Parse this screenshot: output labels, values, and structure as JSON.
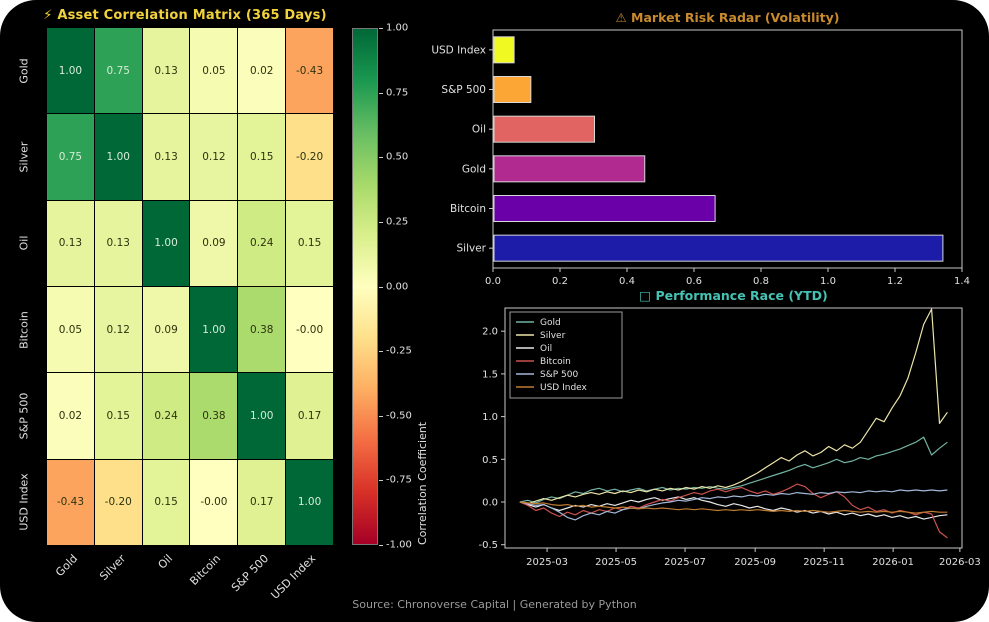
{
  "footer": {
    "text": "Source: Chronoverse Capital | Generated by Python"
  },
  "chart_data": [
    {
      "type": "heatmap",
      "title": "Asset Correlation Matrix (365 Days)",
      "title_icon": "⚡",
      "labels": [
        "Gold",
        "Silver",
        "Oil",
        "Bitcoin",
        "S&P 500",
        "USD Index"
      ],
      "matrix": [
        [
          1.0,
          0.75,
          0.13,
          0.05,
          0.02,
          -0.43
        ],
        [
          0.75,
          1.0,
          0.13,
          0.12,
          0.15,
          -0.2
        ],
        [
          0.13,
          0.13,
          1.0,
          0.09,
          0.24,
          0.15
        ],
        [
          0.05,
          0.12,
          0.09,
          1.0,
          0.38,
          -0.0
        ],
        [
          0.02,
          0.15,
          0.24,
          0.38,
          1.0,
          0.17
        ],
        [
          -0.43,
          -0.2,
          0.15,
          -0.0,
          0.17,
          1.0
        ]
      ],
      "cell_text": [
        [
          "1.00",
          "0.75",
          "0.13",
          "0.05",
          "0.02",
          "-0.43"
        ],
        [
          "0.75",
          "1.00",
          "0.13",
          "0.12",
          "0.15",
          "-0.20"
        ],
        [
          "0.13",
          "0.13",
          "1.00",
          "0.09",
          "0.24",
          "0.15"
        ],
        [
          "0.05",
          "0.12",
          "0.09",
          "1.00",
          "0.38",
          "-0.00"
        ],
        [
          "0.02",
          "0.15",
          "0.24",
          "0.38",
          "1.00",
          "0.17"
        ],
        [
          "-0.43",
          "-0.20",
          "0.15",
          "-0.00",
          "0.17",
          "1.00"
        ]
      ],
      "colorbar": {
        "label": "Correlation Coefficient",
        "range": [
          -1,
          1
        ],
        "ticks": [
          1.0,
          0.75,
          0.5,
          0.25,
          0.0,
          -0.25,
          -0.5,
          -0.75,
          -1.0
        ],
        "tick_labels": [
          "1.00",
          "0.75",
          "0.50",
          "0.25",
          "0.00",
          "-0.25",
          "-0.50",
          "-0.75",
          "-1.00"
        ]
      }
    },
    {
      "type": "bar",
      "orientation": "horizontal",
      "title": "Market Risk Radar (Volatility)",
      "title_icon": "⚠",
      "categories": [
        "USD Index",
        "S&P 500",
        "Oil",
        "Gold",
        "Bitcoin",
        "Silver"
      ],
      "values": [
        0.06,
        0.11,
        0.3,
        0.45,
        0.66,
        1.34
      ],
      "bar_colors": [
        "#f0f921",
        "#fca636",
        "#e16462",
        "#b12a90",
        "#6a00a8",
        "#1c1ca8"
      ],
      "xlim": [
        0,
        1.4
      ],
      "x_ticks": [
        {
          "v": 0.0,
          "label": "0.0"
        },
        {
          "v": 0.2,
          "label": "0.2"
        },
        {
          "v": 0.4,
          "label": "0.4"
        },
        {
          "v": 0.6,
          "label": "0.6"
        },
        {
          "v": 0.8,
          "label": "0.8"
        },
        {
          "v": 1.0,
          "label": "1.0"
        },
        {
          "v": 1.2,
          "label": "1.2"
        },
        {
          "v": 1.4,
          "label": "1.4"
        }
      ]
    },
    {
      "type": "line",
      "title": "Performance Race (YTD)",
      "title_icon": "□",
      "legend_position": "upper-left",
      "ylim": [
        -0.54,
        2.27
      ],
      "y_ticks": [
        {
          "v": 2.0,
          "label": "2.0"
        },
        {
          "v": 1.5,
          "label": "1.5"
        },
        {
          "v": 1.0,
          "label": "1.0"
        },
        {
          "v": 0.5,
          "label": "0.5"
        },
        {
          "v": 0.0,
          "label": "0.0"
        },
        {
          "v": -0.5,
          "label": "-0.5"
        }
      ],
      "x_ticks": [
        {
          "day": 28,
          "label": "2025-03"
        },
        {
          "day": 89,
          "label": "2025-05"
        },
        {
          "day": 150,
          "label": "2025-07"
        },
        {
          "day": 212,
          "label": "2025-09"
        },
        {
          "day": 273,
          "label": "2025-11"
        },
        {
          "day": 334,
          "label": "2026-01"
        },
        {
          "day": 393,
          "label": "2026-03"
        }
      ],
      "series": [
        {
          "name": "Gold",
          "color": "#72b3a2",
          "start_day": 4,
          "step_days": 7,
          "values": [
            0.0,
            0.02,
            -0.01,
            0.03,
            0.06,
            0.04,
            0.08,
            0.12,
            0.1,
            0.14,
            0.16,
            0.13,
            0.15,
            0.12,
            0.14,
            0.16,
            0.13,
            0.15,
            0.17,
            0.14,
            0.16,
            0.15,
            0.17,
            0.16,
            0.18,
            0.16,
            0.15,
            0.17,
            0.19,
            0.22,
            0.25,
            0.28,
            0.31,
            0.34,
            0.37,
            0.41,
            0.44,
            0.4,
            0.43,
            0.46,
            0.5,
            0.46,
            0.48,
            0.52,
            0.5,
            0.54,
            0.56,
            0.59,
            0.62,
            0.66,
            0.7,
            0.76,
            0.55,
            0.63,
            0.7
          ]
        },
        {
          "name": "Silver",
          "color": "#ece5a8",
          "start_day": 4,
          "step_days": 7,
          "values": [
            0.0,
            -0.02,
            0.01,
            0.04,
            0.02,
            0.05,
            0.08,
            0.06,
            0.09,
            0.11,
            0.09,
            0.12,
            0.1,
            0.13,
            0.11,
            0.14,
            0.12,
            0.15,
            0.13,
            0.16,
            0.14,
            0.17,
            0.15,
            0.18,
            0.16,
            0.19,
            0.17,
            0.2,
            0.24,
            0.29,
            0.34,
            0.4,
            0.46,
            0.52,
            0.48,
            0.55,
            0.6,
            0.54,
            0.58,
            0.65,
            0.6,
            0.67,
            0.63,
            0.7,
            0.84,
            0.98,
            0.94,
            1.1,
            1.24,
            1.45,
            1.75,
            2.08,
            2.26,
            0.92,
            1.05
          ]
        },
        {
          "name": "Oil",
          "color": "#e8e8e8",
          "start_day": 4,
          "step_days": 7,
          "values": [
            0.0,
            -0.03,
            -0.06,
            -0.03,
            -0.07,
            -0.1,
            -0.07,
            -0.04,
            -0.06,
            -0.03,
            -0.05,
            -0.02,
            -0.04,
            -0.01,
            0.02,
            0.0,
            0.03,
            0.05,
            0.02,
            0.04,
            0.06,
            0.03,
            0.05,
            0.02,
            0.0,
            -0.03,
            -0.05,
            -0.02,
            -0.04,
            -0.07,
            -0.05,
            -0.08,
            -0.1,
            -0.07,
            -0.09,
            -0.12,
            -0.1,
            -0.13,
            -0.11,
            -0.14,
            -0.12,
            -0.15,
            -0.13,
            -0.16,
            -0.14,
            -0.17,
            -0.15,
            -0.18,
            -0.16,
            -0.19,
            -0.17,
            -0.2,
            -0.18,
            -0.16,
            -0.15
          ]
        },
        {
          "name": "Bitcoin",
          "color": "#c9524e",
          "start_day": 4,
          "step_days": 7,
          "values": [
            0.0,
            -0.04,
            -0.1,
            -0.07,
            -0.13,
            -0.17,
            -0.12,
            -0.15,
            -0.1,
            -0.13,
            -0.09,
            -0.11,
            -0.07,
            -0.09,
            -0.05,
            -0.07,
            -0.03,
            0.0,
            0.03,
            0.01,
            0.05,
            0.08,
            0.11,
            0.09,
            0.13,
            0.15,
            0.12,
            0.15,
            0.17,
            0.13,
            0.1,
            0.13,
            0.09,
            0.12,
            0.16,
            0.21,
            0.18,
            0.1,
            0.05,
            0.09,
            0.12,
            0.06,
            -0.04,
            -0.09,
            -0.06,
            -0.11,
            -0.09,
            -0.13,
            -0.1,
            -0.12,
            -0.15,
            -0.12,
            -0.14,
            -0.35,
            -0.42
          ]
        },
        {
          "name": "S&P 500",
          "color": "#a3b8d8",
          "start_day": 4,
          "step_days": 7,
          "values": [
            0.0,
            -0.02,
            -0.04,
            -0.03,
            -0.07,
            -0.12,
            -0.18,
            -0.21,
            -0.16,
            -0.13,
            -0.15,
            -0.11,
            -0.13,
            -0.09,
            -0.07,
            -0.08,
            -0.05,
            -0.03,
            -0.01,
            0.0,
            0.02,
            0.01,
            0.03,
            0.05,
            0.04,
            0.06,
            0.05,
            0.07,
            0.06,
            0.08,
            0.07,
            0.09,
            0.08,
            0.1,
            0.09,
            0.11,
            0.1,
            0.09,
            0.11,
            0.1,
            0.12,
            0.11,
            0.12,
            0.11,
            0.13,
            0.12,
            0.13,
            0.12,
            0.14,
            0.13,
            0.14,
            0.13,
            0.14,
            0.13,
            0.14
          ]
        },
        {
          "name": "USD Index",
          "color": "#bd7a30",
          "start_day": 4,
          "step_days": 7,
          "values": [
            0.0,
            -0.01,
            -0.02,
            -0.01,
            -0.03,
            -0.04,
            -0.03,
            -0.05,
            -0.04,
            -0.06,
            -0.05,
            -0.06,
            -0.07,
            -0.06,
            -0.07,
            -0.08,
            -0.07,
            -0.08,
            -0.07,
            -0.08,
            -0.09,
            -0.08,
            -0.09,
            -0.08,
            -0.09,
            -0.1,
            -0.09,
            -0.1,
            -0.09,
            -0.1,
            -0.09,
            -0.1,
            -0.11,
            -0.1,
            -0.11,
            -0.1,
            -0.11,
            -0.1,
            -0.11,
            -0.12,
            -0.11,
            -0.1,
            -0.11,
            -0.12,
            -0.11,
            -0.12,
            -0.11,
            -0.12,
            -0.11,
            -0.12,
            -0.13,
            -0.12,
            -0.11,
            -0.12,
            -0.12
          ]
        }
      ]
    }
  ]
}
